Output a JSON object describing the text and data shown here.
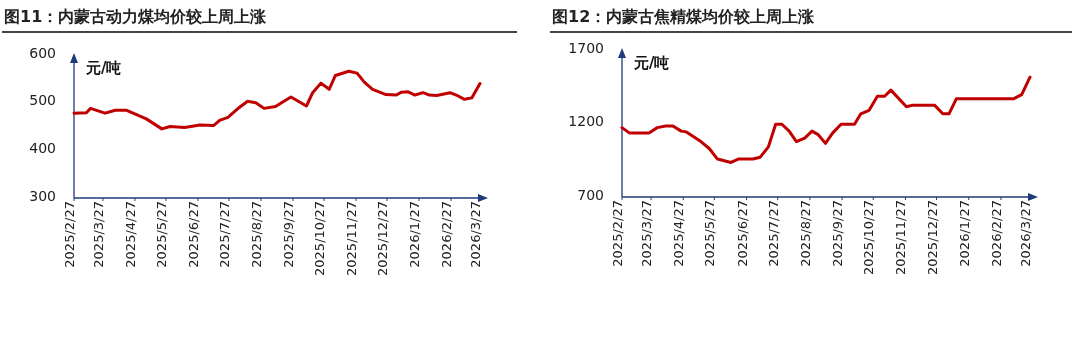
{
  "chart_data": [
    {
      "type": "line",
      "title": "图11：内蒙古动力煤均价较上周上涨",
      "ylabel": "元/吨",
      "x": [
        "2025-02-27",
        "2025-03-11",
        "2025-03-15",
        "2025-03-29",
        "2025-04-08",
        "2025-04-19",
        "2025-05-08",
        "2025-05-23",
        "2025-05-31",
        "2025-06-14",
        "2025-06-29",
        "2025-07-12",
        "2025-07-18",
        "2025-07-26",
        "2025-08-06",
        "2025-08-14",
        "2025-08-22",
        "2025-08-30",
        "2025-09-10",
        "2025-09-25",
        "2025-10-10",
        "2025-10-16",
        "2025-10-24",
        "2025-11-01",
        "2025-11-07",
        "2025-11-20",
        "2025-11-28",
        "2025-12-05",
        "2025-12-13",
        "2025-12-26",
        "2026-01-05",
        "2026-01-10",
        "2026-01-16",
        "2026-01-23",
        "2026-01-31",
        "2026-02-06",
        "2026-02-13",
        "2026-02-26",
        "2026-03-04",
        "2026-03-12",
        "2026-03-19",
        "2026-03-27"
      ],
      "series": [
        {
          "color": "#c00000",
          "values": [
            478,
            479,
            488,
            478,
            484,
            484,
            466,
            445,
            450,
            448,
            453,
            452,
            463,
            469,
            490,
            503,
            500,
            488,
            492,
            512,
            493,
            521,
            541,
            528,
            557,
            566,
            562,
            543,
            528,
            517,
            516,
            522,
            523,
            516,
            521,
            516,
            515,
            521,
            516,
            507,
            510,
            540
          ]
        }
      ],
      "xlim": [
        "2025-02-27",
        "2026-03-27"
      ],
      "xticks": [
        {
          "value": "2025-02-27",
          "label": "2025/2/27"
        },
        {
          "value": "2025-03-27",
          "label": "2025/3/27"
        },
        {
          "value": "2025-04-27",
          "label": "2025/4/27"
        },
        {
          "value": "2025-05-27",
          "label": "2025/5/27"
        },
        {
          "value": "2025-06-27",
          "label": "2025/6/27"
        },
        {
          "value": "2025-07-27",
          "label": "2025/7/27"
        },
        {
          "value": "2025-08-27",
          "label": "2025/8/27"
        },
        {
          "value": "2025-09-27",
          "label": "2025/9/27"
        },
        {
          "value": "2025-10-27",
          "label": "2025/10/27"
        },
        {
          "value": "2025-11-27",
          "label": "2025/11/27"
        },
        {
          "value": "2025-12-27",
          "label": "2025/12/27"
        },
        {
          "value": "2026-01-27",
          "label": "2026/1/27"
        },
        {
          "value": "2026-02-27",
          "label": "2026/2/27"
        },
        {
          "value": "2026-03-27",
          "label": "2026/3/27"
        }
      ],
      "ylim": [
        300,
        600
      ],
      "yticks": [
        300,
        400,
        500,
        600
      ]
    },
    {
      "type": "line",
      "title": "图12：内蒙古焦精煤均价较上周上涨",
      "ylabel": "元/吨",
      "x": [
        "2025-02-27",
        "2025-03-06",
        "2025-03-25",
        "2025-04-02",
        "2025-04-10",
        "2025-04-17",
        "2025-04-25",
        "2025-04-30",
        "2025-05-14",
        "2025-05-22",
        "2025-05-30",
        "2025-06-12",
        "2025-06-19",
        "2025-07-03",
        "2025-07-10",
        "2025-07-18",
        "2025-07-25",
        "2025-07-31",
        "2025-08-07",
        "2025-08-14",
        "2025-08-22",
        "2025-08-29",
        "2025-09-04",
        "2025-09-11",
        "2025-09-18",
        "2025-09-26",
        "2025-10-09",
        "2025-10-15",
        "2025-10-23",
        "2025-10-31",
        "2025-11-07",
        "2025-11-13",
        "2025-11-28",
        "2025-12-04",
        "2025-12-25",
        "2026-01-02",
        "2026-01-08",
        "2026-01-15",
        "2026-03-11",
        "2026-03-19",
        "2026-03-27"
      ],
      "series": [
        {
          "color": "#c00000",
          "values": [
            1172,
            1136,
            1136,
            1172,
            1183,
            1183,
            1148,
            1143,
            1077,
            1030,
            958,
            935,
            958,
            958,
            970,
            1041,
            1195,
            1195,
            1148,
            1077,
            1100,
            1148,
            1124,
            1065,
            1136,
            1195,
            1195,
            1266,
            1290,
            1385,
            1385,
            1427,
            1314,
            1325,
            1325,
            1266,
            1266,
            1368,
            1368,
            1396,
            1515
          ]
        }
      ],
      "xlim": [
        "2025-02-27",
        "2026-03-27"
      ],
      "xticks": [
        {
          "value": "2025-02-27",
          "label": "2025/2/27"
        },
        {
          "value": "2025-03-27",
          "label": "2025/3/27"
        },
        {
          "value": "2025-04-27",
          "label": "2025/4/27"
        },
        {
          "value": "2025-05-27",
          "label": "2025/5/27"
        },
        {
          "value": "2025-06-27",
          "label": "2025/6/27"
        },
        {
          "value": "2025-07-27",
          "label": "2025/7/27"
        },
        {
          "value": "2025-08-27",
          "label": "2025/8/27"
        },
        {
          "value": "2025-09-27",
          "label": "2025/9/27"
        },
        {
          "value": "2025-10-27",
          "label": "2025/10/27"
        },
        {
          "value": "2025-11-27",
          "label": "2025/11/27"
        },
        {
          "value": "2025-12-27",
          "label": "2025/12/27"
        },
        {
          "value": "2026-01-27",
          "label": "2026/1/27"
        },
        {
          "value": "2026-02-27",
          "label": "2026/2/27"
        },
        {
          "value": "2026-03-27",
          "label": "2026/3/27"
        }
      ],
      "ylim": [
        700,
        1700
      ],
      "yticks": [
        700,
        1200,
        1700
      ]
    }
  ]
}
